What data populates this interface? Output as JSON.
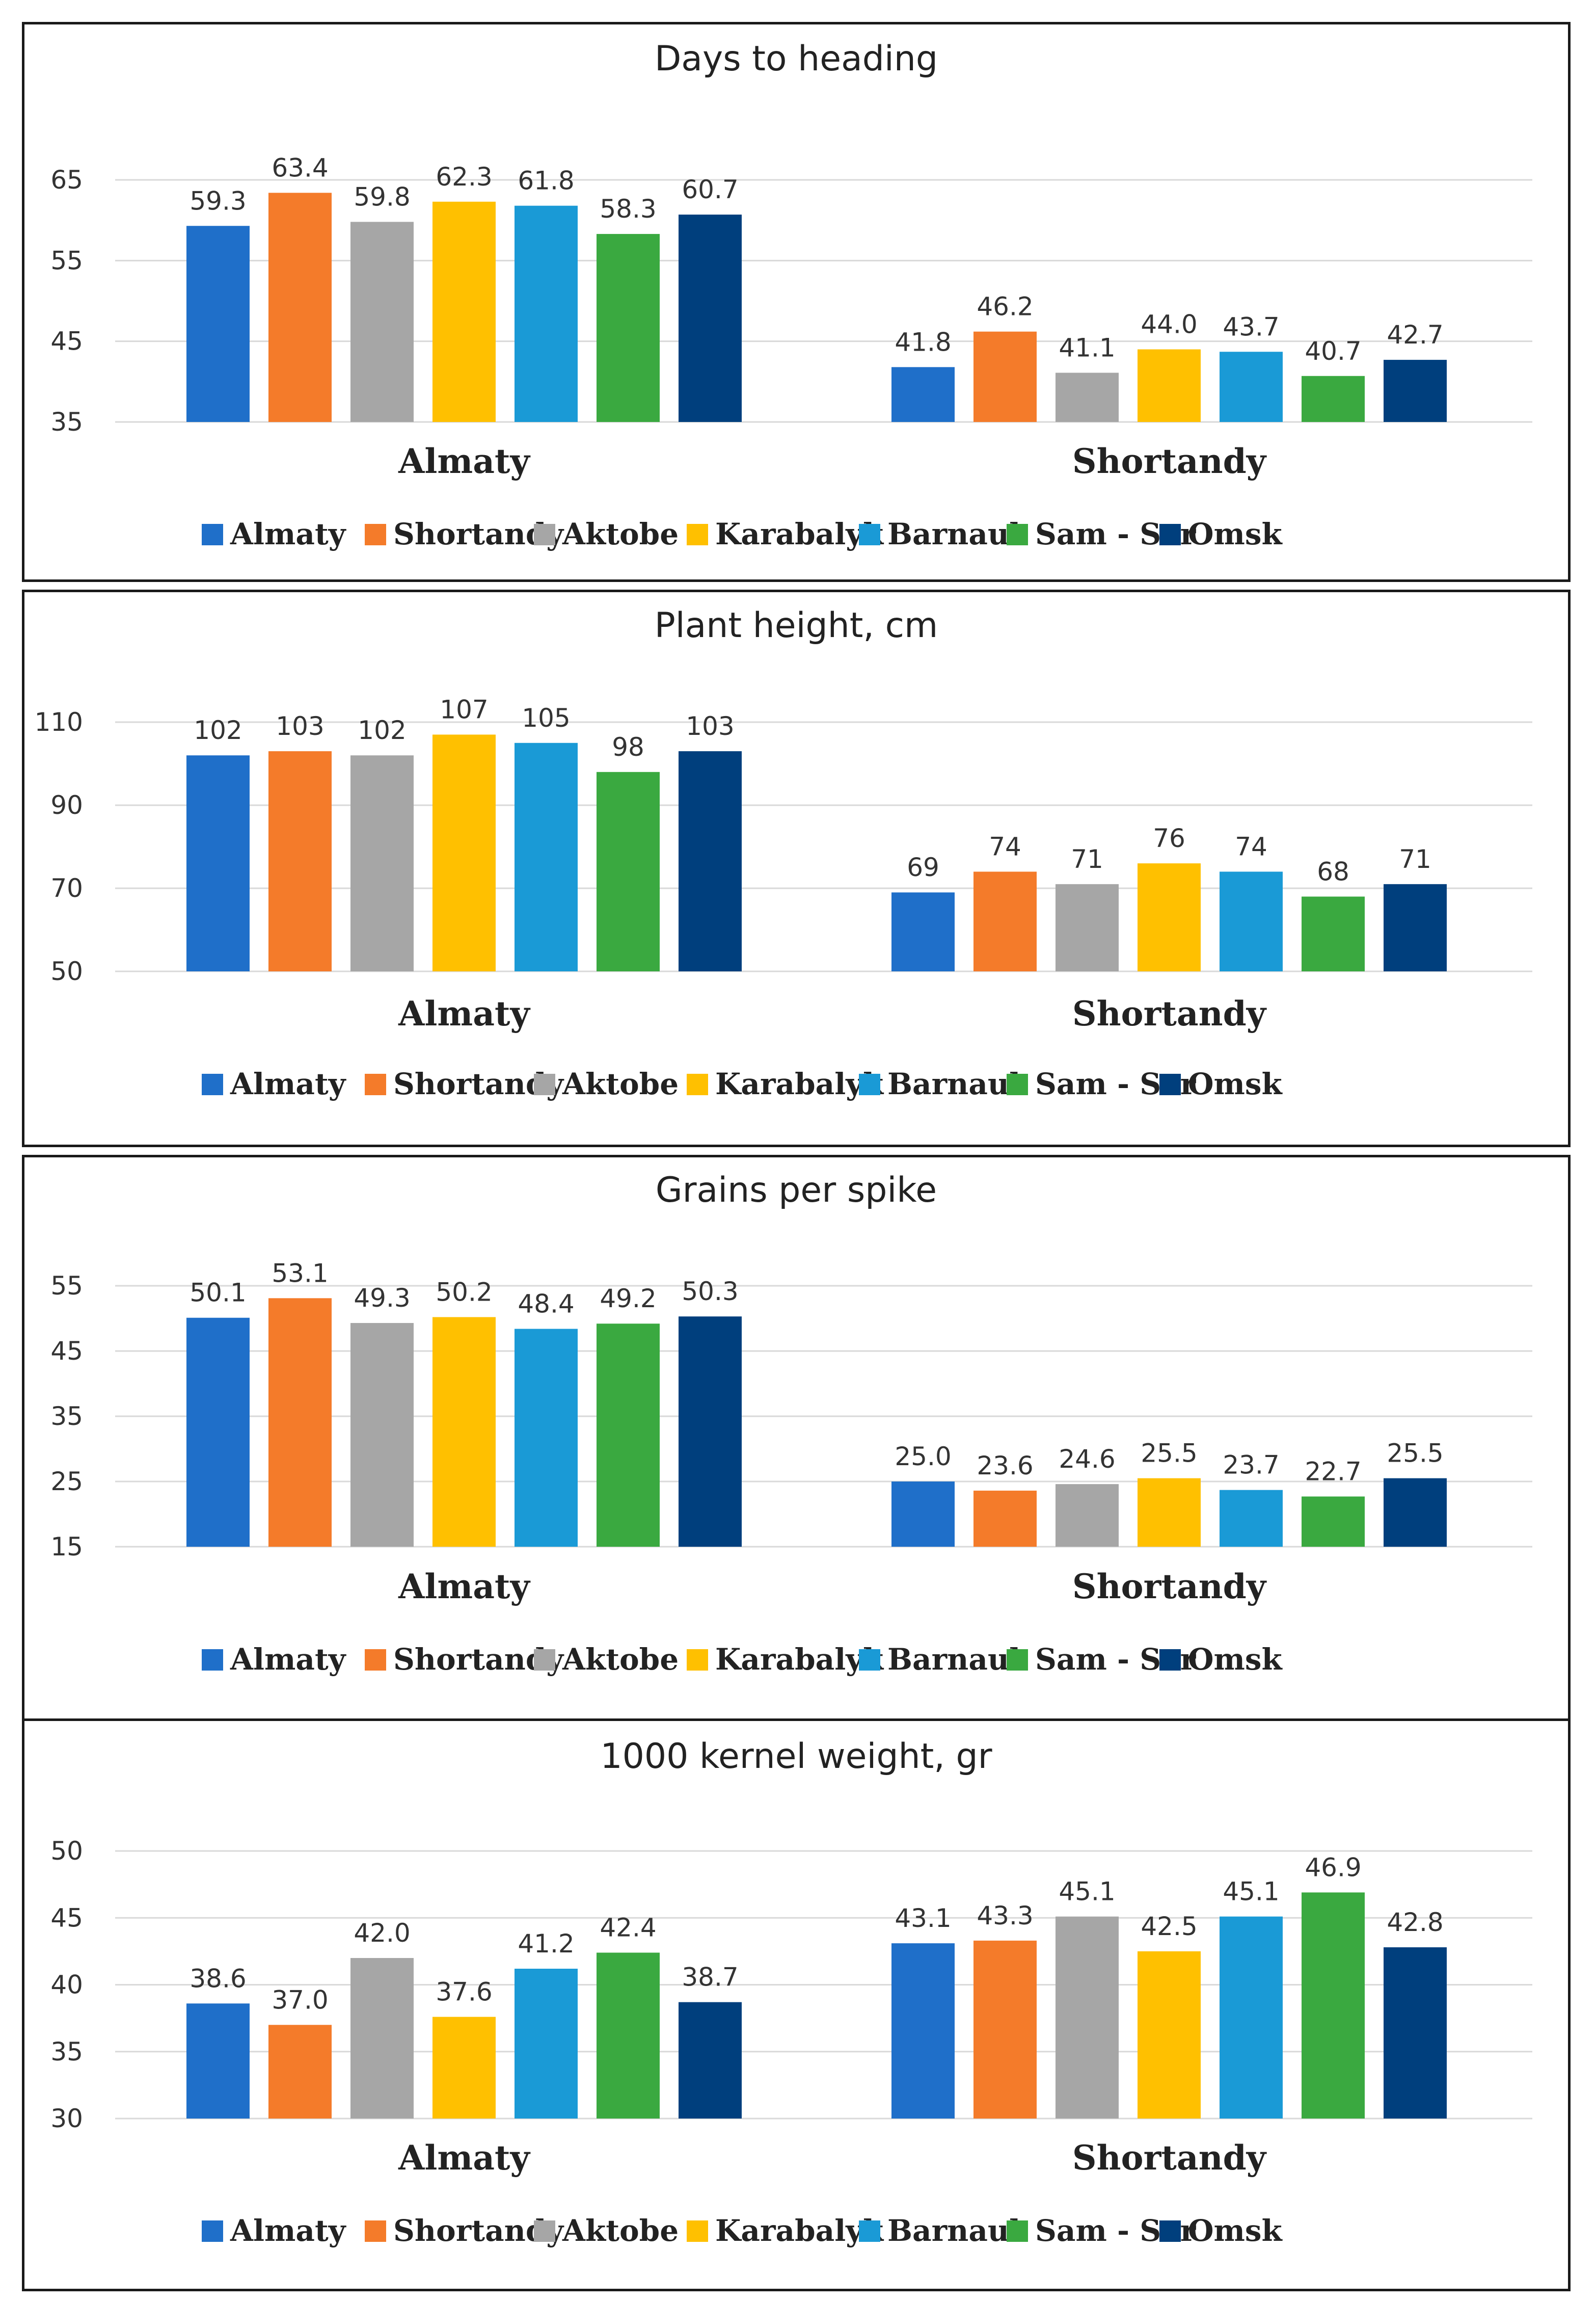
{
  "series": [
    {
      "name": "Almaty",
      "color": "#1f6fc9"
    },
    {
      "name": "Shortandy",
      "color": "#f47b2a"
    },
    {
      "name": "Aktobe",
      "color": "#a6a6a6"
    },
    {
      "name": "Karabalyk",
      "color": "#ffc000"
    },
    {
      "name": "Barnaul",
      "color": "#1a9ad6"
    },
    {
      "name": "Sam - Sar",
      "color": "#3aa940"
    },
    {
      "name": "Omsk",
      "color": "#003f7d"
    }
  ],
  "chart_data": [
    {
      "type": "bar",
      "title": "Days to heading",
      "categories": [
        "Almaty",
        "Shortandy"
      ],
      "ylim": [
        35,
        65
      ],
      "yticks": [
        35,
        45,
        55,
        65
      ],
      "series": [
        {
          "name": "Almaty",
          "values": [
            59.3,
            41.8
          ]
        },
        {
          "name": "Shortandy",
          "values": [
            63.4,
            46.2
          ]
        },
        {
          "name": "Aktobe",
          "values": [
            59.8,
            41.1
          ]
        },
        {
          "name": "Karabalyk",
          "values": [
            62.3,
            44.0
          ]
        },
        {
          "name": "Barnaul",
          "values": [
            61.8,
            43.7
          ]
        },
        {
          "name": "Sam - Sar",
          "values": [
            58.3,
            40.7
          ]
        },
        {
          "name": "Omsk",
          "values": [
            60.7,
            42.7
          ]
        }
      ],
      "labels": [
        [
          "59.3",
          "63.4",
          "59.8",
          "62.3",
          "61.8",
          "58.3",
          "60.7"
        ],
        [
          "41.8",
          "46.2",
          "41.1",
          "44.0",
          "43.7",
          "40.7",
          "42.7"
        ]
      ]
    },
    {
      "type": "bar",
      "title": "Plant height, cm",
      "categories": [
        "Almaty",
        "Shortandy"
      ],
      "ylim": [
        50,
        110
      ],
      "yticks": [
        50,
        70,
        90,
        110
      ],
      "series": [
        {
          "name": "Almaty",
          "values": [
            102,
            69
          ]
        },
        {
          "name": "Shortandy",
          "values": [
            103,
            74
          ]
        },
        {
          "name": "Aktobe",
          "values": [
            102,
            71
          ]
        },
        {
          "name": "Karabalyk",
          "values": [
            107,
            76
          ]
        },
        {
          "name": "Barnaul",
          "values": [
            105,
            74
          ]
        },
        {
          "name": "Sam - Sar",
          "values": [
            98,
            68
          ]
        },
        {
          "name": "Omsk",
          "values": [
            103,
            71
          ]
        }
      ],
      "labels": [
        [
          "102",
          "103",
          "102",
          "107",
          "105",
          "98",
          "103"
        ],
        [
          "69",
          "74",
          "71",
          "76",
          "74",
          "68",
          "71"
        ]
      ]
    },
    {
      "type": "bar",
      "title": "Grains per spike",
      "categories": [
        "Almaty",
        "Shortandy"
      ],
      "ylim": [
        15,
        55
      ],
      "yticks": [
        15,
        25,
        35,
        45,
        55
      ],
      "series": [
        {
          "name": "Almaty",
          "values": [
            50.1,
            25.0
          ]
        },
        {
          "name": "Shortandy",
          "values": [
            53.1,
            23.6
          ]
        },
        {
          "name": "Aktobe",
          "values": [
            49.3,
            24.6
          ]
        },
        {
          "name": "Karabalyk",
          "values": [
            50.2,
            25.5
          ]
        },
        {
          "name": "Barnaul",
          "values": [
            48.4,
            23.7
          ]
        },
        {
          "name": "Sam - Sar",
          "values": [
            49.2,
            22.7
          ]
        },
        {
          "name": "Omsk",
          "values": [
            50.3,
            25.5
          ]
        }
      ],
      "labels": [
        [
          "50.1",
          "53.1",
          "49.3",
          "50.2",
          "48.4",
          "49.2",
          "50.3"
        ],
        [
          "25.0",
          "23.6",
          "24.6",
          "25.5",
          "23.7",
          "22.7",
          "25.5"
        ]
      ]
    },
    {
      "type": "bar",
      "title": "1000 kernel weight, gr",
      "categories": [
        "Almaty",
        "Shortandy"
      ],
      "ylim": [
        30,
        50
      ],
      "yticks": [
        30,
        35,
        40,
        45,
        50
      ],
      "series": [
        {
          "name": "Almaty",
          "values": [
            38.6,
            43.1
          ]
        },
        {
          "name": "Shortandy",
          "values": [
            37.0,
            43.3
          ]
        },
        {
          "name": "Aktobe",
          "values": [
            42.0,
            45.1
          ]
        },
        {
          "name": "Karabalyk",
          "values": [
            37.6,
            42.5
          ]
        },
        {
          "name": "Barnaul",
          "values": [
            41.2,
            45.1
          ]
        },
        {
          "name": "Sam - Sar",
          "values": [
            42.4,
            46.9
          ]
        },
        {
          "name": "Omsk",
          "values": [
            38.7,
            42.8
          ]
        }
      ],
      "labels": [
        [
          "38.6",
          "37.0",
          "42.0",
          "37.6",
          "41.2",
          "42.4",
          "38.7"
        ],
        [
          "43.1",
          "43.3",
          "45.1",
          "42.5",
          "45.1",
          "46.9",
          "42.8"
        ]
      ]
    }
  ]
}
